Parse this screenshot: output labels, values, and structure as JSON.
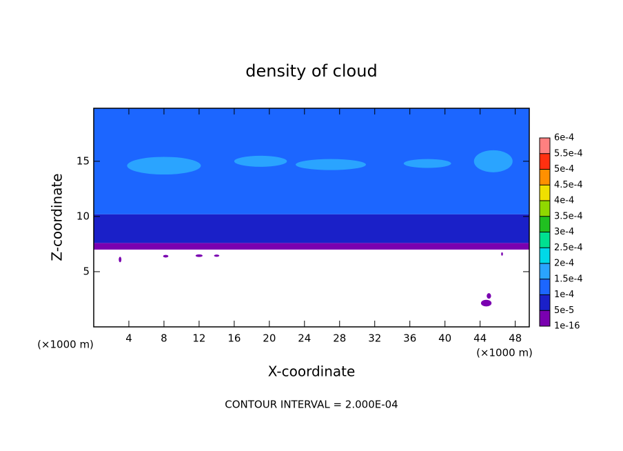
{
  "chart_data": {
    "type": "contour",
    "title": "density of cloud",
    "xlabel": "X-coordinate",
    "ylabel": "Z-coordinate",
    "xunit": "(×1000 m)",
    "yunit": "(×1000 m)",
    "note": "CONTOUR INTERVAL = 2.000E-04",
    "xlim": [
      0,
      49.6
    ],
    "ylim": [
      0,
      19.8
    ],
    "xticks": [
      4,
      8,
      12,
      16,
      20,
      24,
      28,
      32,
      36,
      40,
      44,
      48
    ],
    "yticks": [
      5,
      10,
      15
    ],
    "colorbar_ticks": [
      {
        "value": 1e-16,
        "label": "1e-16"
      },
      {
        "value": 5e-05,
        "label": "5e-5"
      },
      {
        "value": 0.0001,
        "label": "1e-4"
      },
      {
        "value": 0.00015,
        "label": "1.5e-4"
      },
      {
        "value": 0.0002,
        "label": "2e-4"
      },
      {
        "value": 0.00025,
        "label": "2.5e-4"
      },
      {
        "value": 0.0003,
        "label": "3e-4"
      },
      {
        "value": 0.00035,
        "label": "3.5e-4"
      },
      {
        "value": 0.0004,
        "label": "4e-4"
      },
      {
        "value": 0.00045,
        "label": "4.5e-4"
      },
      {
        "value": 0.0005,
        "label": "5e-4"
      },
      {
        "value": 0.00055,
        "label": "5.5e-4"
      },
      {
        "value": 0.0006,
        "label": "6e-4"
      }
    ],
    "colors": [
      "#7a00b0",
      "#1a20c8",
      "#1c66ff",
      "#2aa4ff",
      "#00d8e8",
      "#00e090",
      "#20c020",
      "#90d800",
      "#f0e000",
      "#ff9000",
      "#ff3010",
      "#ff8080"
    ],
    "layers": [
      {
        "zlim": [
          7,
          7.6
        ],
        "value": 2e-05
      },
      {
        "zlim": [
          7.6,
          10.2
        ],
        "value": 7e-05
      },
      {
        "zlim": [
          10.2,
          19.8
        ],
        "value": 0.00013
      }
    ],
    "patches": [
      {
        "x": 8,
        "z": 14.6,
        "rx": 4.2,
        "rz": 0.8,
        "value": 0.00017
      },
      {
        "x": 19,
        "z": 15,
        "rx": 3,
        "rz": 0.5,
        "value": 0.00017
      },
      {
        "x": 27,
        "z": 14.7,
        "rx": 4,
        "rz": 0.5,
        "value": 0.00017
      },
      {
        "x": 38,
        "z": 14.8,
        "rx": 2.7,
        "rz": 0.4,
        "value": 0.00017
      },
      {
        "x": 45.5,
        "z": 15,
        "rx": 2.2,
        "rz": 1,
        "value": 0.00017
      },
      {
        "x": 3,
        "z": 6.1,
        "rx": 0.15,
        "rz": 0.25,
        "value": 2e-05
      },
      {
        "x": 8.2,
        "z": 6.4,
        "rx": 0.3,
        "rz": 0.12,
        "value": 2e-05
      },
      {
        "x": 12,
        "z": 6.45,
        "rx": 0.4,
        "rz": 0.12,
        "value": 2e-05
      },
      {
        "x": 14,
        "z": 6.45,
        "rx": 0.3,
        "rz": 0.1,
        "value": 2e-05
      },
      {
        "x": 44.7,
        "z": 2.15,
        "rx": 0.6,
        "rz": 0.3,
        "value": 2e-05
      },
      {
        "x": 45,
        "z": 2.8,
        "rx": 0.25,
        "rz": 0.25,
        "value": 2e-05
      },
      {
        "x": 46.5,
        "z": 6.6,
        "rx": 0.1,
        "rz": 0.15,
        "value": 2e-05
      }
    ]
  }
}
